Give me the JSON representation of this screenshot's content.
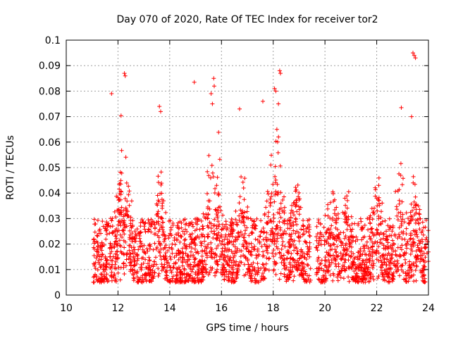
{
  "chart_data": {
    "type": "scatter",
    "title": "Day 070 of 2020, Rate Of TEC Index for receiver tor2",
    "xlabel": "GPS time / hours",
    "ylabel": "ROTI / TECUs",
    "xlim": [
      10,
      24
    ],
    "ylim": [
      0,
      0.1
    ],
    "x_ticks": [
      "10",
      "12",
      "14",
      "16",
      "18",
      "20",
      "22",
      "24"
    ],
    "y_ticks": [
      "0",
      "0.01",
      "0.02",
      "0.03",
      "0.04",
      "0.05",
      "0.06",
      "0.07",
      "0.08",
      "0.09",
      "0.1"
    ],
    "grid": true,
    "marker": "+",
    "color": "#ff0000",
    "data_gap_hours": [
      19.45,
      19.65
    ],
    "series": [
      {
        "name": "ROTI",
        "x_range": [
          11.05,
          24.0
        ],
        "typical_range": [
          0.005,
          0.03
        ],
        "notable_points": [
          {
            "x": 11.75,
            "y": 0.079
          },
          {
            "x": 12.25,
            "y": 0.087
          },
          {
            "x": 12.28,
            "y": 0.086
          },
          {
            "x": 13.6,
            "y": 0.074
          },
          {
            "x": 13.65,
            "y": 0.072
          },
          {
            "x": 14.95,
            "y": 0.0835
          },
          {
            "x": 15.7,
            "y": 0.085
          },
          {
            "x": 15.72,
            "y": 0.082
          },
          {
            "x": 15.6,
            "y": 0.079
          },
          {
            "x": 15.65,
            "y": 0.075
          },
          {
            "x": 16.7,
            "y": 0.073
          },
          {
            "x": 17.6,
            "y": 0.076
          },
          {
            "x": 18.05,
            "y": 0.081
          },
          {
            "x": 18.1,
            "y": 0.08
          },
          {
            "x": 18.25,
            "y": 0.088
          },
          {
            "x": 18.28,
            "y": 0.087
          },
          {
            "x": 18.2,
            "y": 0.075
          },
          {
            "x": 22.95,
            "y": 0.0735
          },
          {
            "x": 23.4,
            "y": 0.095
          },
          {
            "x": 23.45,
            "y": 0.094
          },
          {
            "x": 23.5,
            "y": 0.093
          },
          {
            "x": 23.35,
            "y": 0.07
          }
        ]
      }
    ]
  }
}
